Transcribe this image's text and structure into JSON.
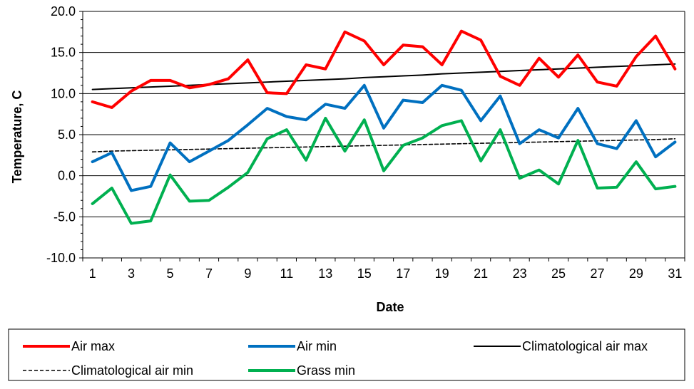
{
  "chart_data": {
    "type": "line",
    "title": "",
    "xlabel": "Date",
    "ylabel": "Temperature, C",
    "ylim": [
      -10,
      20
    ],
    "y_ticks": [
      "-10.0",
      "-5.0",
      "0.0",
      "5.0",
      "10.0",
      "15.0",
      "20.0"
    ],
    "x_tick_labels": [
      "1",
      "3",
      "5",
      "7",
      "9",
      "11",
      "13",
      "15",
      "17",
      "19",
      "21",
      "23",
      "25",
      "27",
      "29",
      "31"
    ],
    "x": [
      1,
      2,
      3,
      4,
      5,
      6,
      7,
      8,
      9,
      10,
      11,
      12,
      13,
      14,
      15,
      16,
      17,
      18,
      19,
      20,
      21,
      22,
      23,
      24,
      25,
      26,
      27,
      28,
      29,
      30,
      31
    ],
    "grid": "horizontal major",
    "legend_position": "bottom",
    "series": [
      {
        "name": "Air max",
        "color": "#ff0000",
        "style": "solid-thick",
        "values": [
          9.0,
          8.3,
          10.3,
          11.6,
          11.6,
          10.7,
          11.1,
          11.8,
          14.1,
          10.1,
          10.0,
          13.5,
          13.0,
          17.5,
          16.4,
          13.5,
          15.9,
          15.7,
          13.5,
          17.6,
          16.5,
          12.1,
          11.0,
          14.3,
          12.0,
          14.7,
          11.4,
          10.9,
          14.5,
          17.0,
          13.0
        ]
      },
      {
        "name": "Air min",
        "color": "#0070c0",
        "style": "solid-thick",
        "values": [
          1.7,
          2.8,
          -1.8,
          -1.3,
          4.0,
          1.7,
          3.0,
          4.3,
          6.2,
          8.2,
          7.2,
          6.8,
          8.7,
          8.2,
          11.0,
          5.8,
          9.2,
          8.9,
          11.0,
          10.4,
          6.7,
          9.7,
          3.9,
          5.6,
          4.6,
          8.2,
          3.9,
          3.3,
          6.7,
          2.3,
          4.1
        ]
      },
      {
        "name": "Climatological air max",
        "color": "#000000",
        "style": "solid-thin",
        "values": [
          10.5,
          10.6,
          10.7,
          10.8,
          10.9,
          11.0,
          11.1,
          11.2,
          11.3,
          11.4,
          11.5,
          11.6,
          11.7,
          11.8,
          11.95,
          12.05,
          12.15,
          12.25,
          12.4,
          12.5,
          12.6,
          12.7,
          12.8,
          12.9,
          13.0,
          13.1,
          13.2,
          13.3,
          13.4,
          13.5,
          13.6
        ]
      },
      {
        "name": "Climatological air min",
        "color": "#000000",
        "style": "dashed",
        "values": [
          2.9,
          3.0,
          3.05,
          3.1,
          3.15,
          3.2,
          3.25,
          3.3,
          3.35,
          3.4,
          3.45,
          3.5,
          3.55,
          3.6,
          3.65,
          3.7,
          3.75,
          3.8,
          3.85,
          3.9,
          3.95,
          4.0,
          4.05,
          4.1,
          4.15,
          4.2,
          4.25,
          4.3,
          4.35,
          4.4,
          4.5
        ]
      },
      {
        "name": "Grass min",
        "color": "#00b050",
        "style": "solid-thick",
        "values": [
          -3.4,
          -1.5,
          -5.8,
          -5.5,
          0.1,
          -3.1,
          -3.0,
          -1.4,
          0.4,
          4.5,
          5.6,
          1.9,
          7.0,
          3.0,
          6.8,
          0.6,
          3.7,
          4.6,
          6.1,
          6.7,
          1.8,
          5.6,
          -0.3,
          0.7,
          -1.0,
          4.3,
          -1.5,
          -1.4,
          1.7,
          -1.6,
          -1.3
        ]
      }
    ]
  }
}
